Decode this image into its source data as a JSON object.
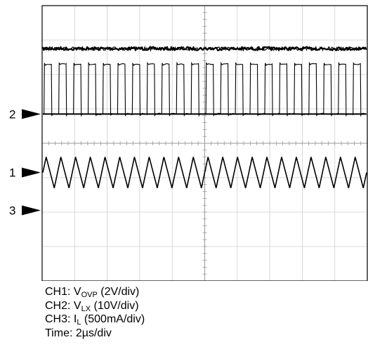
{
  "chart_data": {
    "type": "line",
    "title": "",
    "grid": true,
    "divisions": {
      "x": 10,
      "y": 8
    },
    "x": {
      "label": "Time: 2µs/div",
      "range_div": [
        0,
        10
      ]
    },
    "y": {
      "range_div": [
        0,
        8
      ]
    },
    "channel_markers": [
      {
        "label": "2",
        "level_div": 4.85
      },
      {
        "label": "1",
        "level_div": 3.15
      },
      {
        "label": "3",
        "level_div": 2.05
      }
    ],
    "series": [
      {
        "name": "CH1: VOVP (2V/div)",
        "waveform": "dc",
        "level_div": 6.75,
        "noise_div": 0.05,
        "marker_ref": "2",
        "color": "#000000"
      },
      {
        "name": "CH2: VLX (10V/div)",
        "waveform": "square",
        "low_div": 4.85,
        "high_div": 6.3,
        "cycles": 22,
        "duty": 0.5,
        "color": "#000000"
      },
      {
        "name": "CH3: IL (500mA/div)",
        "waveform": "triangle",
        "min_div": 2.7,
        "max_div": 3.6,
        "cycles": 22,
        "rise_fraction": 0.45,
        "color": "#000000"
      }
    ],
    "legend": [
      {
        "prefix": "CH1: V",
        "sub": "OVP",
        "suffix": " (2V/div)"
      },
      {
        "prefix": "CH2: V",
        "sub": "LX",
        "suffix": " (10V/div)"
      },
      {
        "prefix": "CH3: I",
        "sub": "L",
        "suffix": " (500mA/div)"
      },
      {
        "prefix": "Time: 2µs/div",
        "sub": "",
        "suffix": ""
      }
    ]
  }
}
